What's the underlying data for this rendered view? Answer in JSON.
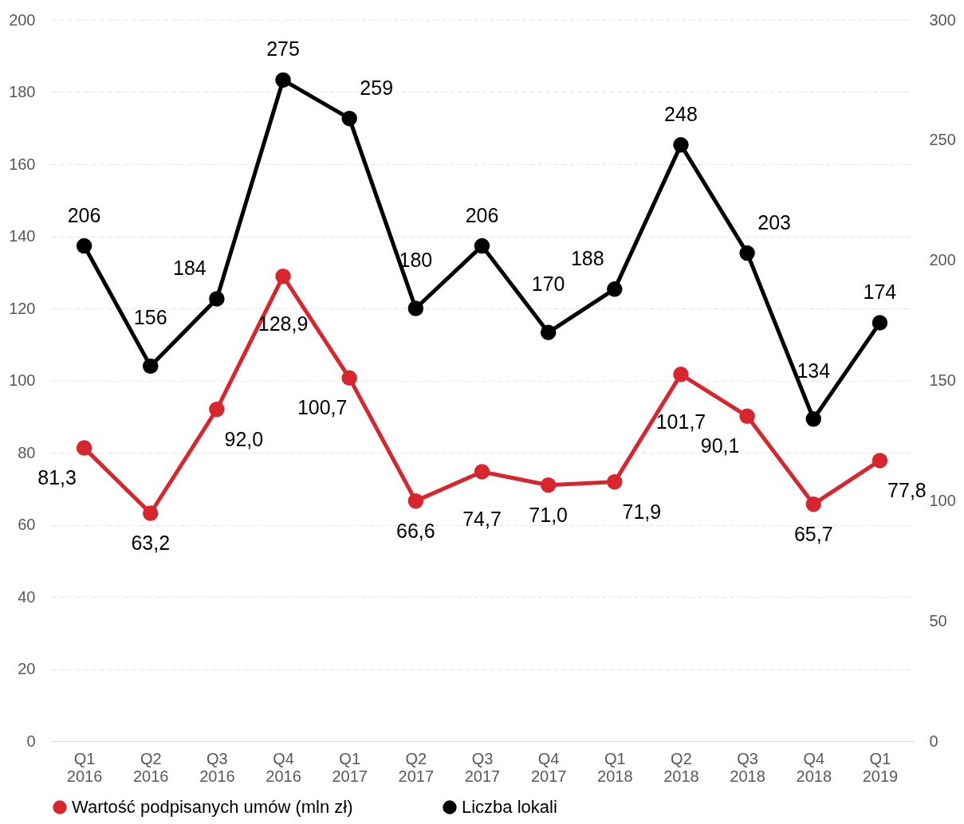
{
  "chart_data": {
    "type": "line",
    "categories": [
      "Q1 2016",
      "Q2 2016",
      "Q3 2016",
      "Q4 2016",
      "Q1 2017",
      "Q2 2017",
      "Q3 2017",
      "Q4 2017",
      "Q1 2018",
      "Q2 2018",
      "Q3 2018",
      "Q4 2018",
      "Q1 2019"
    ],
    "series": [
      {
        "name": "Wartość podpisanych umów (mln zł)",
        "color": "#d9262e",
        "values": [
          81.3,
          63.2,
          92.0,
          128.9,
          100.7,
          66.6,
          74.7,
          71.0,
          71.9,
          101.7,
          90.1,
          65.7,
          77.8
        ],
        "value_labels": [
          "81,3",
          "63,2",
          "92,0",
          "128,9",
          "100,7",
          "66,6",
          "74,7",
          "71,0",
          "71,9",
          "101,7",
          "90,1",
          "65,7",
          "77,8"
        ]
      },
      {
        "name": "Liczba lokali",
        "color": "#000000",
        "axis": "y2",
        "values": [
          206,
          156,
          184,
          275,
          259,
          180,
          206,
          170,
          188,
          248,
          203,
          134,
          174
        ],
        "value_labels": [
          "206",
          "156",
          "184",
          "275",
          "259",
          "180",
          "206",
          "170",
          "188",
          "248",
          "203",
          "134",
          "174"
        ]
      }
    ],
    "ylim": [
      0,
      200
    ],
    "yticks": [
      0,
      20,
      40,
      60,
      80,
      100,
      120,
      140,
      160,
      180,
      200
    ],
    "y2lim": [
      0,
      300
    ],
    "y2ticks": [
      0,
      50,
      100,
      150,
      200,
      250,
      300
    ],
    "grid": "y",
    "legend": "bottom",
    "marker": "circle",
    "line_style": "solid"
  }
}
